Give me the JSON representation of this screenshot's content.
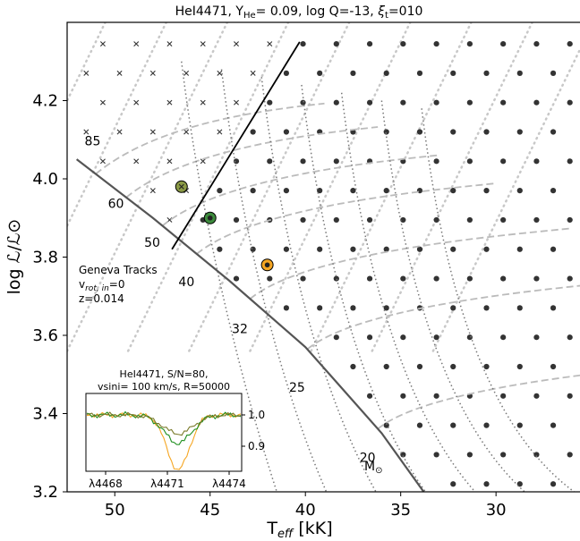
{
  "title": "HeI4471, Y",
  "title_sub": "He",
  "title_rest": "= 0.09, log Q=-13, ",
  "title_xi": "ξ",
  "title_xi_sub": "t",
  "title_end": "=010",
  "chart_data": {
    "type": "scatter",
    "xlabel": "T",
    "xlabel_sub": "eff",
    "xlabel_unit": " [kK]",
    "ylabel": "log ℒ/ℒ⊙",
    "xlim": [
      52.5,
      25.5
    ],
    "ylim": [
      3.2,
      4.4
    ],
    "xticks": [
      50,
      45,
      40,
      35,
      30
    ],
    "xtick_labels": [
      "50",
      "45",
      "40",
      "35",
      "30"
    ],
    "yticks": [
      3.2,
      3.4,
      3.6,
      3.8,
      4.0,
      4.2
    ],
    "ytick_labels": [
      "3.2",
      "3.4",
      "3.6",
      "3.8",
      "4.0",
      "4.2"
    ],
    "zams": [
      [
        52,
        4.05
      ],
      [
        48,
        3.9
      ],
      [
        44,
        3.74
      ],
      [
        40,
        3.57
      ],
      [
        36,
        3.35
      ],
      [
        33.5,
        3.18
      ]
    ],
    "boundary_line": [
      [
        47,
        3.82
      ],
      [
        40.3,
        4.35
      ]
    ],
    "track_masses": [
      {
        "label": "85",
        "t": 51.3,
        "l": 4.1
      },
      {
        "label": "60",
        "t": 49.7,
        "l": 3.94
      },
      {
        "label": "50",
        "t": 47.8,
        "l": 3.84
      },
      {
        "label": "40",
        "t": 46,
        "l": 3.74
      },
      {
        "label": "32",
        "t": 43.2,
        "l": 3.62
      },
      {
        "label": "25",
        "t": 40.2,
        "l": 3.47
      },
      {
        "label": "20",
        "t": 36.5,
        "l": 3.29
      }
    ],
    "msun_label": "M",
    "msun_symbol": "⊙",
    "geneva_label": "Geneva Tracks",
    "geneva_vrot": "v",
    "geneva_vrot_sub": "rot, in",
    "geneva_vrot_val": "=0",
    "geneva_z": "z=0.014",
    "highlighted_stars": [
      {
        "t": 46.5,
        "l": 3.98,
        "color": "#8b9a46",
        "marker": "x"
      },
      {
        "t": 45.0,
        "l": 3.9,
        "color": "#3d8b3d",
        "marker": "dot"
      },
      {
        "t": 42.0,
        "l": 3.78,
        "color": "#f5a623",
        "marker": "dot"
      }
    ],
    "colors": {
      "dot": "#333333",
      "cross": "#333333",
      "track": "#bbbbbb",
      "iso": "#c8c8c8",
      "dotted": "#777777",
      "zams": "#555555"
    }
  },
  "inset": {
    "title_line1": "HeI4471, S/N=80,",
    "title_line2": "vsini= 100 km/s, R=50000",
    "xticks": [
      "λ4468",
      "λ4471",
      "λ4474"
    ],
    "yticks": [
      "1.0",
      "0.9"
    ],
    "series": [
      {
        "name": "orange",
        "color": "#f5a623"
      },
      {
        "name": "green",
        "color": "#1f8f1f"
      },
      {
        "name": "olive",
        "color": "#7a7a2a"
      }
    ]
  }
}
